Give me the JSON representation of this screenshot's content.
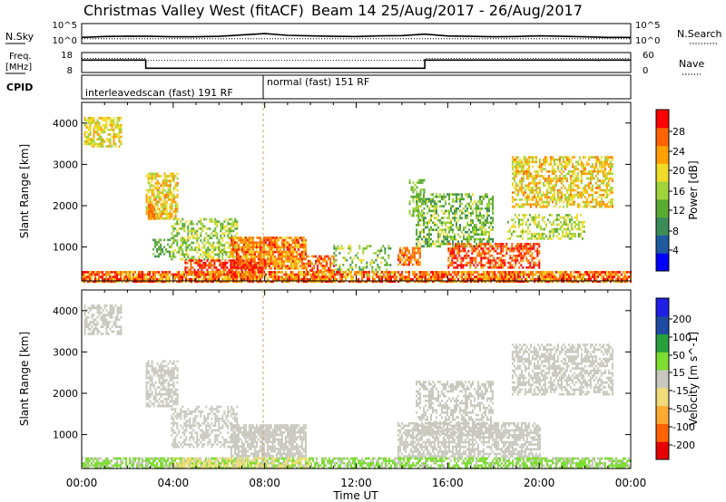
{
  "header": {
    "station": "Christmas Valley West (fitACF)",
    "beam_date": "Beam 14 25/Aug/2017 - 26/Aug/2017"
  },
  "nsky_panel": {
    "left_label": "N.Sky",
    "left_ticks": [
      "10^5",
      "10^0"
    ],
    "right_ticks": [
      "10^5",
      "10^0"
    ],
    "right_label": "N.Search"
  },
  "freq_panel": {
    "left_label_1": "Freq.",
    "left_label_2": "[MHz]",
    "left_ticks": [
      "18",
      "8"
    ],
    "right_ticks": [
      "60",
      "0"
    ],
    "right_label": "Nave"
  },
  "cpid_panel": {
    "label": "CPID",
    "modes": [
      "interleavedscan (fast) 191 RF",
      "normal (fast) 151 RF"
    ]
  },
  "power_panel": {
    "ylabel": "Slant Range [km]",
    "cbar_label": "Power [dB]",
    "cbar_ticks": [
      "28",
      "24",
      "20",
      "16",
      "12",
      "8",
      "4"
    ]
  },
  "velocity_panel": {
    "ylabel": "Slant Range [km]",
    "cbar_label": "Velocity [m s^-1]",
    "cbar_ticks": [
      "200",
      "100",
      "50",
      "15",
      "-15",
      "-50",
      "-100",
      "-200"
    ]
  },
  "xaxis": {
    "label": "Time UT",
    "ticks": [
      "00:00",
      "04:00",
      "08:00",
      "12:00",
      "16:00",
      "20:00",
      "00:00"
    ]
  },
  "colors": {
    "power_scale": [
      "#0000ff",
      "#1e5aa0",
      "#3c8c5a",
      "#5aaa32",
      "#a0d23c",
      "#f0dc28",
      "#ffa000",
      "#ff6400",
      "#ff0000"
    ],
    "velocity_scale": [
      "#e60000",
      "#ff6400",
      "#ffaa32",
      "#f0dc78",
      "#c8c8be",
      "#7ddc32",
      "#28a03c",
      "#1e4ba0",
      "#1e1ee6"
    ]
  },
  "chart_data": [
    {
      "type": "line",
      "title": "N.Sky / N.Search",
      "x_range_hours": [
        0,
        24
      ],
      "y_scale": "log",
      "ylim": [
        1,
        100000
      ],
      "series": [
        {
          "name": "N.Sky",
          "style": "solid",
          "x": [
            0,
            1,
            2,
            3,
            4,
            5,
            6,
            7,
            8,
            9,
            10,
            11,
            12,
            13,
            14,
            15,
            16,
            17,
            18,
            19,
            20,
            21,
            22,
            23,
            24
          ],
          "values": [
            30,
            60,
            80,
            70,
            50,
            50,
            70,
            200,
            600,
            150,
            100,
            70,
            60,
            100,
            120,
            400,
            90,
            70,
            50,
            60,
            100,
            70,
            50,
            30,
            30
          ]
        },
        {
          "name": "N.Search",
          "style": "dotted",
          "x": [
            0,
            1,
            2,
            3,
            4,
            5,
            6,
            7,
            8,
            9,
            10,
            11,
            12,
            13,
            14,
            15,
            16,
            17,
            18,
            19,
            20,
            21,
            22,
            23,
            24
          ],
          "values": [
            20,
            20,
            20,
            20,
            20,
            20,
            20,
            20,
            20,
            20,
            20,
            20,
            20,
            20,
            20,
            20,
            20,
            20,
            20,
            20,
            20,
            20,
            20,
            20,
            20
          ]
        }
      ]
    },
    {
      "type": "line",
      "title": "Freq / Nave",
      "x_range_hours": [
        0,
        24
      ],
      "left_ylim": [
        8,
        18
      ],
      "right_ylim": [
        0,
        60
      ],
      "series": [
        {
          "name": "Freq.",
          "axis": "left",
          "x": [
            0,
            2.8,
            2.8,
            15.0,
            15.0,
            24
          ],
          "values": [
            14.5,
            14.5,
            9.5,
            9.5,
            14.5,
            14.5
          ]
        },
        {
          "name": "Nave",
          "axis": "right",
          "style": "dotted",
          "x": [
            0,
            2.8,
            2.8,
            15.0,
            15.0,
            24
          ],
          "values": [
            45,
            45,
            38,
            38,
            45,
            45
          ]
        }
      ],
      "cpid_segments": [
        {
          "label": "interleavedscan (fast) 191 RF",
          "start": 0,
          "end": 7.9
        },
        {
          "label": "normal (fast) 151 RF",
          "start": 7.9,
          "end": 24
        }
      ]
    },
    {
      "type": "heatmap",
      "title": "Power",
      "x_range_hours": [
        0,
        24
      ],
      "xlabel": "Time UT",
      "ylabel": "Slant Range [km]",
      "ylim": [
        180,
        4500
      ],
      "yticks": [
        1000,
        2000,
        3000,
        4000
      ],
      "clim": [
        0,
        30
      ],
      "units": "dB",
      "patches": [
        {
          "t": [
            0.1,
            1.7
          ],
          "r": [
            3450,
            4150
          ],
          "v": [
            14,
            22
          ],
          "d": 0.7
        },
        {
          "t": [
            2.8,
            4.2
          ],
          "r": [
            1700,
            2800
          ],
          "v": [
            14,
            24
          ],
          "d": 0.7
        },
        {
          "t": [
            2.9,
            3.2
          ],
          "r": [
            1700,
            2050
          ],
          "v": [
            22,
            26
          ],
          "d": 0.9
        },
        {
          "t": [
            3.1,
            4.0
          ],
          "r": [
            800,
            1200
          ],
          "v": [
            8,
            14
          ],
          "d": 0.5
        },
        {
          "t": [
            3.9,
            6.8
          ],
          "r": [
            700,
            1700
          ],
          "v": [
            10,
            20
          ],
          "d": 0.55
        },
        {
          "t": [
            6.5,
            9.8
          ],
          "r": [
            500,
            1250
          ],
          "v": [
            18,
            28
          ],
          "d": 0.85
        },
        {
          "t": [
            4.5,
            8.0
          ],
          "r": [
            350,
            700
          ],
          "v": [
            24,
            30
          ],
          "d": 0.7
        },
        {
          "t": [
            9.8,
            11.0
          ],
          "r": [
            450,
            800
          ],
          "v": [
            20,
            28
          ],
          "d": 0.6
        },
        {
          "t": [
            11.0,
            13.5
          ],
          "r": [
            350,
            1050
          ],
          "v": [
            8,
            18
          ],
          "d": 0.35
        },
        {
          "t": [
            13.8,
            14.8
          ],
          "r": [
            550,
            1000
          ],
          "v": [
            20,
            28
          ],
          "d": 0.7
        },
        {
          "t": [
            14.6,
            18.0
          ],
          "r": [
            1000,
            2300
          ],
          "v": [
            8,
            18
          ],
          "d": 0.55
        },
        {
          "t": [
            16.0,
            20.0
          ],
          "r": [
            500,
            1100
          ],
          "v": [
            22,
            30
          ],
          "d": 0.6
        },
        {
          "t": [
            14.3,
            15.0
          ],
          "r": [
            1700,
            2700
          ],
          "v": [
            10,
            16
          ],
          "d": 0.4
        },
        {
          "t": [
            18.6,
            22.0
          ],
          "r": [
            1200,
            1800
          ],
          "v": [
            12,
            20
          ],
          "d": 0.5
        },
        {
          "t": [
            18.8,
            23.2
          ],
          "r": [
            2000,
            3200
          ],
          "v": [
            14,
            24
          ],
          "d": 0.6
        },
        {
          "t": [
            0.0,
            24.0
          ],
          "r": [
            180,
            420
          ],
          "v": [
            18,
            30
          ],
          "d": 0.8
        }
      ]
    },
    {
      "type": "heatmap",
      "title": "Velocity",
      "x_range_hours": [
        0,
        24
      ],
      "xlabel": "Time UT",
      "ylabel": "Slant Range [km]",
      "ylim": [
        180,
        4500
      ],
      "yticks": [
        1000,
        2000,
        3000,
        4000
      ],
      "clim": [
        -250,
        250
      ],
      "units": "m s^-1",
      "patches": [
        {
          "t": [
            0.1,
            1.7
          ],
          "r": [
            3450,
            4150
          ],
          "v": [
            -15,
            15
          ],
          "d": 0.55
        },
        {
          "t": [
            2.8,
            4.2
          ],
          "r": [
            1700,
            2800
          ],
          "v": [
            -15,
            15
          ],
          "d": 0.6
        },
        {
          "t": [
            3.9,
            6.8
          ],
          "r": [
            700,
            1700
          ],
          "v": [
            -15,
            15
          ],
          "d": 0.5
        },
        {
          "t": [
            6.5,
            9.8
          ],
          "r": [
            500,
            1250
          ],
          "v": [
            -15,
            15
          ],
          "d": 0.8
        },
        {
          "t": [
            13.8,
            20.0
          ],
          "r": [
            500,
            1300
          ],
          "v": [
            -15,
            15
          ],
          "d": 0.65
        },
        {
          "t": [
            14.6,
            18.0
          ],
          "r": [
            1000,
            2300
          ],
          "v": [
            -15,
            15
          ],
          "d": 0.5
        },
        {
          "t": [
            18.8,
            23.2
          ],
          "r": [
            2000,
            3200
          ],
          "v": [
            -15,
            15
          ],
          "d": 0.55
        },
        {
          "t": [
            0.0,
            24.0
          ],
          "r": [
            180,
            450
          ],
          "v": [
            15,
            60
          ],
          "d": 0.7
        },
        {
          "t": [
            4.0,
            10.0
          ],
          "r": [
            180,
            450
          ],
          "v": [
            -80,
            -20
          ],
          "d": 0.5
        }
      ]
    }
  ]
}
